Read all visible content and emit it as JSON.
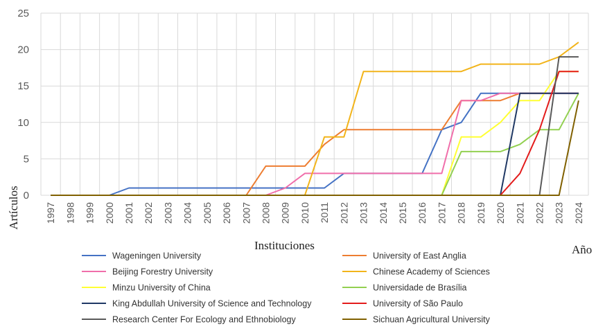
{
  "chart_data": {
    "type": "line",
    "title": "",
    "xlabel": "Año",
    "ylabel": "Artículos",
    "legend_title": "Instituciones",
    "ylim": [
      0,
      25
    ],
    "yticks": [
      "0",
      "5",
      "10",
      "15",
      "20",
      "25"
    ],
    "grid": true,
    "legend_position": "bottom",
    "categories": [
      "1997",
      "1998",
      "1999",
      "2000",
      "2001",
      "2002",
      "2003",
      "2004",
      "2005",
      "2006",
      "2007",
      "2008",
      "2009",
      "2010",
      "2011",
      "2012",
      "2013",
      "2014",
      "2015",
      "2016",
      "2017",
      "2018",
      "2019",
      "2020",
      "2021",
      "2022",
      "2023",
      "2024"
    ],
    "series": [
      {
        "name": "Wageningen University",
        "color": "#4472C4",
        "values": [
          0,
          0,
          0,
          0,
          1,
          1,
          1,
          1,
          1,
          1,
          1,
          1,
          1,
          1,
          1,
          3,
          3,
          3,
          3,
          3,
          9,
          10,
          14,
          14,
          14,
          14,
          14,
          14
        ]
      },
      {
        "name": "University of East Anglia",
        "color": "#ED7D31",
        "values": [
          0,
          0,
          0,
          0,
          0,
          0,
          0,
          0,
          0,
          0,
          0,
          4,
          4,
          4,
          7,
          9,
          9,
          9,
          9,
          9,
          9,
          13,
          13,
          13,
          14,
          14,
          14,
          14
        ]
      },
      {
        "name": "Beijing Forestry University",
        "color": "#F06EAA",
        "values": [
          0,
          0,
          0,
          0,
          0,
          0,
          0,
          0,
          0,
          0,
          0,
          0,
          1,
          3,
          3,
          3,
          3,
          3,
          3,
          3,
          3,
          13,
          13,
          14,
          14,
          14,
          14,
          14
        ]
      },
      {
        "name": "Chinese Academy of Sciences",
        "color": "#F2B41A",
        "values": [
          0,
          0,
          0,
          0,
          0,
          0,
          0,
          0,
          0,
          0,
          0,
          0,
          0,
          0,
          8,
          8,
          17,
          17,
          17,
          17,
          17,
          17,
          18,
          18,
          18,
          18,
          19,
          21
        ]
      },
      {
        "name": "Minzu University of China",
        "color": "#FFFF33",
        "values": [
          0,
          0,
          0,
          0,
          0,
          0,
          0,
          0,
          0,
          0,
          0,
          0,
          0,
          0,
          0,
          0,
          0,
          0,
          0,
          0,
          0,
          8,
          8,
          10,
          13,
          13,
          17,
          17
        ]
      },
      {
        "name": "Universidade de Brasília",
        "color": "#92D050",
        "values": [
          0,
          0,
          0,
          0,
          0,
          0,
          0,
          0,
          0,
          0,
          0,
          0,
          0,
          0,
          0,
          0,
          0,
          0,
          0,
          0,
          0,
          6,
          6,
          6,
          7,
          9,
          9,
          14
        ]
      },
      {
        "name": "King Abdullah University of Science and Technology",
        "color": "#1F3864",
        "values": [
          0,
          0,
          0,
          0,
          0,
          0,
          0,
          0,
          0,
          0,
          0,
          0,
          0,
          0,
          0,
          0,
          0,
          0,
          0,
          0,
          0,
          0,
          0,
          0,
          14,
          14,
          14,
          14
        ]
      },
      {
        "name": "University of São Paulo",
        "color": "#E31B1B",
        "values": [
          0,
          0,
          0,
          0,
          0,
          0,
          0,
          0,
          0,
          0,
          0,
          0,
          0,
          0,
          0,
          0,
          0,
          0,
          0,
          0,
          0,
          0,
          0,
          0,
          3,
          9,
          17,
          17
        ]
      },
      {
        "name": "Research Center For Ecology and Ethnobiology",
        "color": "#595959",
        "values": [
          0,
          0,
          0,
          0,
          0,
          0,
          0,
          0,
          0,
          0,
          0,
          0,
          0,
          0,
          0,
          0,
          0,
          0,
          0,
          0,
          0,
          0,
          0,
          0,
          0,
          0,
          19,
          19
        ]
      },
      {
        "name": "Sichuan Agricultural University",
        "color": "#806000",
        "values": [
          0,
          0,
          0,
          0,
          0,
          0,
          0,
          0,
          0,
          0,
          0,
          0,
          0,
          0,
          0,
          0,
          0,
          0,
          0,
          0,
          0,
          0,
          0,
          0,
          0,
          0,
          0,
          13
        ]
      }
    ]
  }
}
